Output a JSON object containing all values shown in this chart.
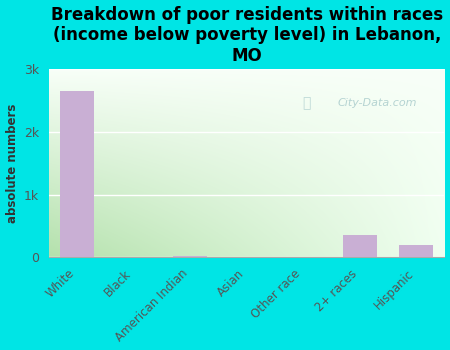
{
  "title": "Breakdown of poor residents within races\n(income below poverty level) in Lebanon,\nMO",
  "categories": [
    "White",
    "Black",
    "American Indian",
    "Asian",
    "Other race",
    "2+ races",
    "Hispanic"
  ],
  "values": [
    2650,
    0,
    20,
    0,
    8,
    350,
    195
  ],
  "bar_color": "#c9afd4",
  "figure_bg_color": "#00e5e5",
  "plot_bg_left": "#c8e6c4",
  "plot_bg_right": "#f8fff8",
  "ylabel": "absolute numbers",
  "ylim": [
    0,
    3000
  ],
  "yticks": [
    0,
    1000,
    2000,
    3000
  ],
  "ytick_labels": [
    "0",
    "1k",
    "2k",
    "3k"
  ],
  "title_fontsize": 12,
  "watermark_text": "City-Data.com",
  "watermark_color": "#aacccc",
  "grid_color": "#ffffff"
}
